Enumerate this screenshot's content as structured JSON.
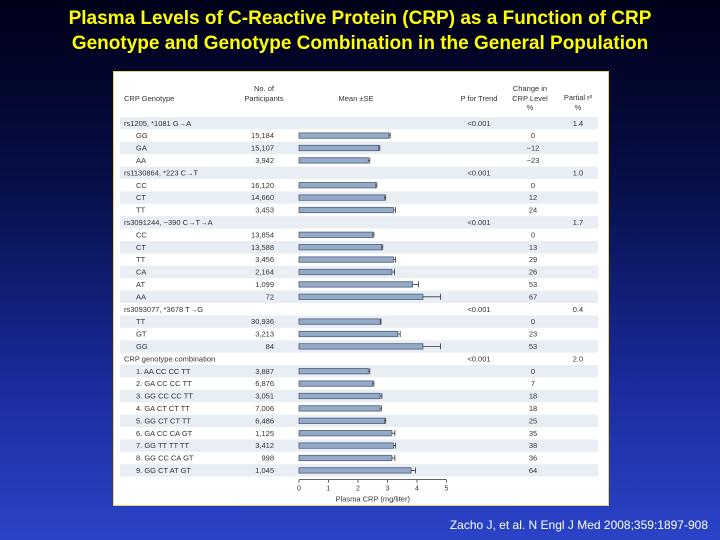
{
  "slide": {
    "title_line1": "Plasma Levels of C-Reactive Protein (CRP) as a Function of CRP",
    "title_line2": "Genotype and Genotype Combination in the General Population",
    "citation": "Zacho J, et al. N Engl J Med 2008;359:1897-908"
  },
  "colors": {
    "bar_fill": "#94aac6",
    "bar_stroke": "#4a5f7c",
    "stripe": "#e9eef5",
    "title": "#ffff00"
  },
  "chart_data": {
    "type": "bar",
    "orientation": "horizontal",
    "xlabel": "Plasma CRP (mg/liter)",
    "xlim": [
      0,
      5
    ],
    "xticks": [
      0,
      1,
      2,
      3,
      4,
      5
    ],
    "headers": {
      "genotype": "CRP Genotype",
      "n_line1": "No. of",
      "n_line2": "Participants",
      "mean": "Mean ±SE",
      "p": "P for Trend",
      "change_line1": "Change in",
      "change_line2": "CRP Level",
      "change_unit": "%",
      "r2_line1": "Partial r²",
      "r2_unit": "%"
    },
    "rows": [
      {
        "kind": "group",
        "label": "rs1205, *1081 G→A",
        "p": "<0.001",
        "r2": "1.4"
      },
      {
        "kind": "data",
        "genotype": "GG",
        "n": "15,184",
        "mean": 3.05,
        "se": 0.04,
        "change": "0"
      },
      {
        "kind": "data",
        "genotype": "GA",
        "n": "15,107",
        "mean": 2.7,
        "se": 0.04,
        "change": "−12"
      },
      {
        "kind": "data",
        "genotype": "AA",
        "n": "3,942",
        "mean": 2.35,
        "se": 0.05,
        "change": "−23"
      },
      {
        "kind": "group",
        "label": "rs1130864, *223 C→T",
        "p": "<0.001",
        "r2": "1.0"
      },
      {
        "kind": "data",
        "genotype": "CC",
        "n": "16,120",
        "mean": 2.6,
        "se": 0.04,
        "change": "0"
      },
      {
        "kind": "data",
        "genotype": "CT",
        "n": "14,660",
        "mean": 2.9,
        "se": 0.04,
        "change": "12"
      },
      {
        "kind": "data",
        "genotype": "TT",
        "n": "3,453",
        "mean": 3.2,
        "se": 0.07,
        "change": "24"
      },
      {
        "kind": "group",
        "label": "rs3091244, −390 C→T→A",
        "p": "<0.001",
        "r2": "1.7"
      },
      {
        "kind": "data",
        "genotype": "CC",
        "n": "13,854",
        "mean": 2.5,
        "se": 0.04,
        "change": "0"
      },
      {
        "kind": "data",
        "genotype": "CT",
        "n": "13,588",
        "mean": 2.8,
        "se": 0.04,
        "change": "13"
      },
      {
        "kind": "data",
        "genotype": "TT",
        "n": "3,456",
        "mean": 3.2,
        "se": 0.07,
        "change": "29"
      },
      {
        "kind": "data",
        "genotype": "CA",
        "n": "2,164",
        "mean": 3.15,
        "se": 0.09,
        "change": "26"
      },
      {
        "kind": "data",
        "genotype": "AT",
        "n": "1,099",
        "mean": 3.85,
        "se": 0.2,
        "change": "53"
      },
      {
        "kind": "data",
        "genotype": "AA",
        "n": "72",
        "mean": 4.2,
        "se": 0.6,
        "change": "67"
      },
      {
        "kind": "group",
        "label": "rs3093077, *3678 T→G",
        "p": "<0.001",
        "r2": "0.4"
      },
      {
        "kind": "data",
        "genotype": "TT",
        "n": "30,936",
        "mean": 2.75,
        "se": 0.03,
        "change": "0"
      },
      {
        "kind": "data",
        "genotype": "GT",
        "n": "3,213",
        "mean": 3.35,
        "se": 0.08,
        "change": "23"
      },
      {
        "kind": "data",
        "genotype": "GG",
        "n": "84",
        "mean": 4.2,
        "se": 0.6,
        "change": "53"
      },
      {
        "kind": "group",
        "label": "CRP genotype combination",
        "p": "<0.001",
        "r2": "2.0"
      },
      {
        "kind": "data",
        "genotype": "1. AA   CC   CC   TT",
        "n": "3,887",
        "mean": 2.35,
        "se": 0.05,
        "change": "0"
      },
      {
        "kind": "data",
        "genotype": "2. GA   CC   CC   TT",
        "n": "6,876",
        "mean": 2.5,
        "se": 0.04,
        "change": "7"
      },
      {
        "kind": "data",
        "genotype": "3. GG   CC   CC   TT",
        "n": "3,051",
        "mean": 2.75,
        "se": 0.06,
        "change": "18"
      },
      {
        "kind": "data",
        "genotype": "4. GA   CT   CT   TT",
        "n": "7,006",
        "mean": 2.75,
        "se": 0.04,
        "change": "18"
      },
      {
        "kind": "data",
        "genotype": "5. GG   CT   CT   TT",
        "n": "6,486",
        "mean": 2.9,
        "se": 0.04,
        "change": "25"
      },
      {
        "kind": "data",
        "genotype": "6. GA   CC   CA   GT",
        "n": "1,125",
        "mean": 3.15,
        "se": 0.1,
        "change": "35"
      },
      {
        "kind": "data",
        "genotype": "7. GG   TT   TT   TT",
        "n": "3,412",
        "mean": 3.2,
        "se": 0.07,
        "change": "38"
      },
      {
        "kind": "data",
        "genotype": "8. GG   CC   CA   GT",
        "n": "998",
        "mean": 3.15,
        "se": 0.1,
        "change": "36"
      },
      {
        "kind": "data",
        "genotype": "9. GG   CT   AT   GT",
        "n": "1,045",
        "mean": 3.8,
        "se": 0.15,
        "change": "64"
      }
    ]
  }
}
